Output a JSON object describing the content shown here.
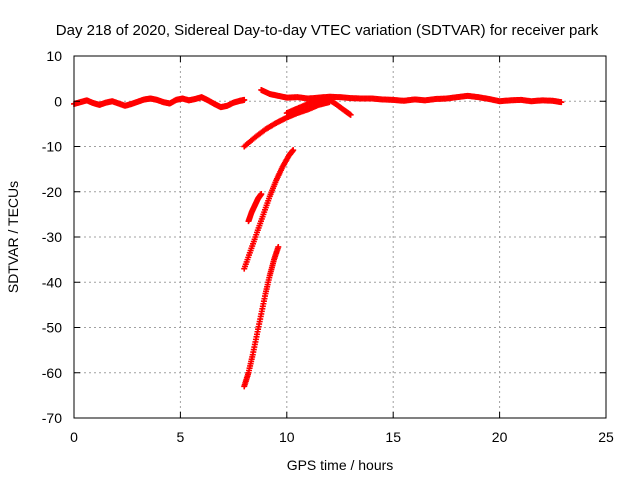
{
  "chart_data": {
    "type": "scatter",
    "title": "Day 218 of 2020, Sidereal Day-to-day VTEC variation (SDTVAR) for receiver park",
    "xlabel": "GPS time / hours",
    "ylabel": "SDTVAR / TECUs",
    "xlim": [
      0,
      25
    ],
    "ylim": [
      -70,
      10
    ],
    "xticks": [
      0,
      5,
      10,
      15,
      20,
      25
    ],
    "yticks": [
      10,
      0,
      -10,
      -20,
      -30,
      -40,
      -50,
      -60,
      -70
    ],
    "grid": true,
    "marker": "+",
    "color": "#ff0000",
    "series": [
      {
        "name": "near-zero arc 1",
        "points": [
          [
            0.0,
            -0.6
          ],
          [
            0.3,
            -0.2
          ],
          [
            0.6,
            0.2
          ],
          [
            0.9,
            -0.4
          ],
          [
            1.2,
            -0.8
          ],
          [
            1.5,
            -0.3
          ],
          [
            1.8,
            0.0
          ],
          [
            2.1,
            -0.5
          ],
          [
            2.4,
            -1.0
          ],
          [
            2.7,
            -0.6
          ],
          [
            3.0,
            -0.1
          ],
          [
            3.3,
            0.4
          ],
          [
            3.6,
            0.6
          ],
          [
            3.9,
            0.3
          ],
          [
            4.2,
            -0.2
          ],
          [
            4.5,
            -0.5
          ],
          [
            4.8,
            0.3
          ],
          [
            5.1,
            0.6
          ],
          [
            5.4,
            0.2
          ],
          [
            5.7,
            0.5
          ],
          [
            6.0,
            0.9
          ],
          [
            6.3,
            0.2
          ],
          [
            6.6,
            -0.6
          ],
          [
            6.9,
            -1.3
          ],
          [
            7.2,
            -1.0
          ],
          [
            7.5,
            -0.3
          ],
          [
            7.8,
            0.1
          ],
          [
            8.0,
            0.3
          ]
        ]
      },
      {
        "name": "near-zero arc 2",
        "points": [
          [
            8.8,
            2.5
          ],
          [
            9.2,
            1.6
          ],
          [
            9.6,
            1.2
          ],
          [
            10.0,
            0.8
          ],
          [
            10.5,
            0.9
          ],
          [
            11.0,
            0.6
          ],
          [
            11.5,
            0.8
          ],
          [
            12.0,
            1.0
          ],
          [
            12.5,
            0.9
          ],
          [
            13.0,
            0.7
          ],
          [
            13.5,
            0.6
          ],
          [
            14.0,
            0.6
          ],
          [
            14.5,
            0.4
          ],
          [
            15.0,
            0.3
          ],
          [
            15.5,
            0.1
          ],
          [
            16.0,
            0.4
          ],
          [
            16.5,
            0.2
          ],
          [
            17.0,
            0.5
          ],
          [
            17.5,
            0.6
          ],
          [
            18.0,
            0.9
          ],
          [
            18.5,
            1.2
          ],
          [
            19.0,
            0.9
          ],
          [
            19.5,
            0.5
          ],
          [
            20.0,
            0.0
          ],
          [
            20.5,
            0.2
          ],
          [
            21.0,
            0.3
          ],
          [
            21.5,
            0.0
          ],
          [
            22.0,
            0.2
          ],
          [
            22.5,
            0.1
          ],
          [
            22.9,
            -0.2
          ]
        ]
      },
      {
        "name": "rising arc A",
        "points": [
          [
            8.0,
            -10.0
          ],
          [
            8.5,
            -8.0
          ],
          [
            9.0,
            -6.2
          ],
          [
            9.5,
            -4.8
          ],
          [
            10.0,
            -3.6
          ],
          [
            10.5,
            -2.6
          ],
          [
            11.0,
            -1.8
          ],
          [
            11.5,
            -0.8
          ],
          [
            12.0,
            -0.2
          ]
        ]
      },
      {
        "name": "hump B",
        "points": [
          [
            10.0,
            -2.6
          ],
          [
            10.5,
            -1.6
          ],
          [
            11.0,
            -0.6
          ],
          [
            11.5,
            0.2
          ],
          [
            11.9,
            0.6
          ],
          [
            12.3,
            -0.6
          ],
          [
            12.7,
            -2.0
          ],
          [
            13.0,
            -3.0
          ]
        ]
      },
      {
        "name": "steep arc C",
        "points": [
          [
            8.0,
            -37.0
          ],
          [
            8.3,
            -33.0
          ],
          [
            8.6,
            -29.0
          ],
          [
            8.9,
            -25.0
          ],
          [
            9.2,
            -21.0
          ],
          [
            9.5,
            -17.5
          ],
          [
            9.8,
            -14.5
          ],
          [
            10.1,
            -12.0
          ],
          [
            10.3,
            -10.8
          ]
        ]
      },
      {
        "name": "short segment D",
        "points": [
          [
            8.2,
            -26.5
          ],
          [
            8.35,
            -24.5
          ],
          [
            8.5,
            -23.0
          ],
          [
            8.65,
            -21.5
          ],
          [
            8.8,
            -20.5
          ]
        ]
      },
      {
        "name": "deep arc E",
        "points": [
          [
            8.0,
            -63.0
          ],
          [
            8.2,
            -60.0
          ],
          [
            8.4,
            -56.0
          ],
          [
            8.6,
            -51.5
          ],
          [
            8.8,
            -47.0
          ],
          [
            9.0,
            -42.5
          ],
          [
            9.2,
            -38.5
          ],
          [
            9.4,
            -35.0
          ],
          [
            9.6,
            -32.2
          ]
        ]
      }
    ]
  }
}
